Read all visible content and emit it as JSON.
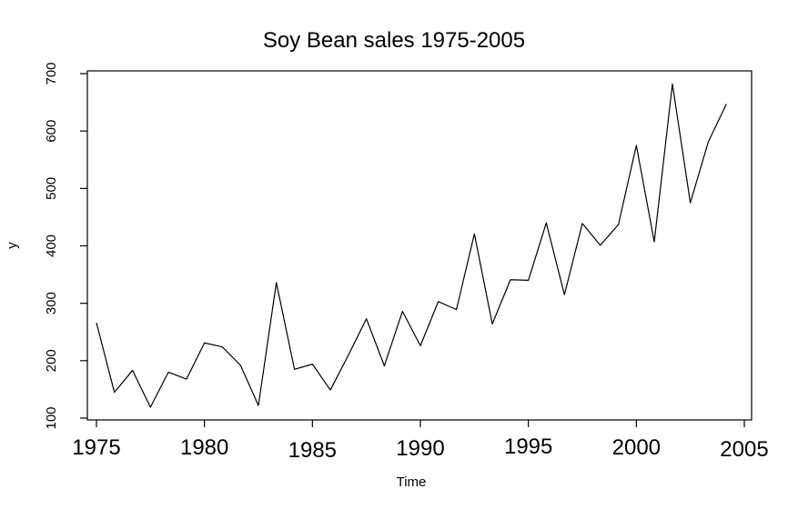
{
  "chart_data": {
    "type": "line",
    "title": "Soy Bean sales 1975-2005",
    "xlabel": "Time",
    "ylabel": "y",
    "xlim": [
      1975,
      2005
    ],
    "ylim": [
      100,
      700
    ],
    "x_ticks": [
      1975,
      1980,
      1985,
      1990,
      1995,
      2000,
      2005
    ],
    "x_tick_labels": [
      "1975",
      "1980",
      "1985",
      "1990",
      "1995",
      "2000",
      "2005"
    ],
    "y_ticks": [
      100,
      200,
      300,
      400,
      500,
      600,
      700
    ],
    "y_tick_labels": [
      "100",
      "200",
      "300",
      "400",
      "500",
      "600",
      "700"
    ],
    "grid": false,
    "series": [
      {
        "x": [
          1975.0,
          1975.83,
          1976.67,
          1977.5,
          1978.33,
          1979.17,
          1980.0,
          1980.83,
          1981.67,
          1982.5,
          1983.33,
          1984.17,
          1985.0,
          1985.83,
          1986.67,
          1987.5,
          1988.33,
          1989.17,
          1990.0,
          1990.83,
          1991.67,
          1992.5,
          1993.33,
          1994.17,
          1995.0,
          1995.83,
          1996.67,
          1997.5,
          1998.33,
          1999.17,
          2000.0,
          2000.83,
          2001.67,
          2002.5,
          2003.33,
          2004.17
        ],
        "values": [
          266,
          145,
          183,
          119,
          180,
          168,
          231,
          224,
          192,
          122,
          336,
          185,
          194,
          149,
          210,
          273,
          191,
          286,
          226,
          303,
          289,
          421,
          264,
          341,
          340,
          440,
          315,
          439,
          401,
          437,
          575,
          407,
          682,
          475,
          581,
          647
        ],
        "color": "#000000"
      }
    ]
  }
}
